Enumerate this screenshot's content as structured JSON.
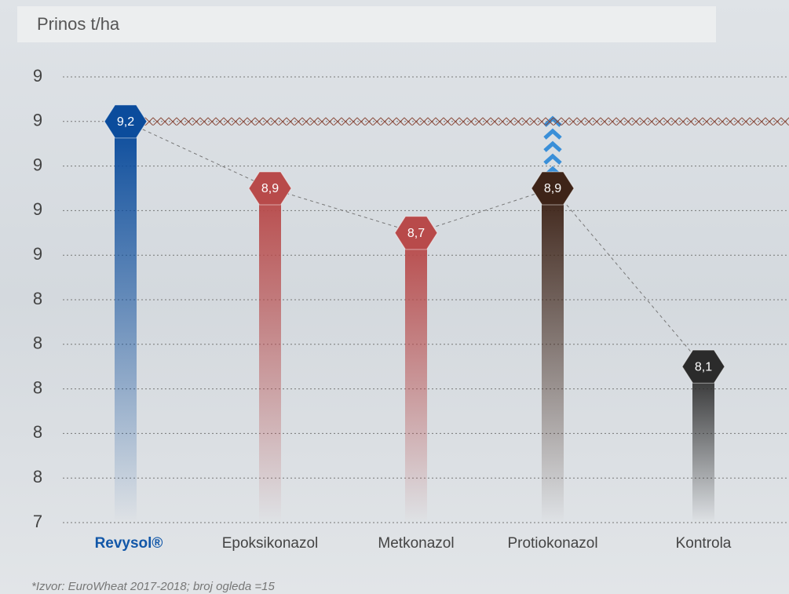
{
  "chart_data": {
    "type": "bar",
    "title": "Prinos t/ha",
    "categories": [
      "Revysol®",
      "Epoksikonazol",
      "Metkonazol",
      "Protiokonazol",
      "Kontrola"
    ],
    "values": [
      9.2,
      8.9,
      8.7,
      8.9,
      8.1
    ],
    "value_labels": [
      "9,2",
      "8,9",
      "8,7",
      "8,9",
      "8,1"
    ],
    "colors": [
      "#0b4c9c",
      "#b84a4a",
      "#b84a4a",
      "#3e2418",
      "#2b2b2b"
    ],
    "ylim": [
      7.4,
      9.4
    ],
    "yticks": [
      {
        "value": 7.4,
        "label": "7"
      },
      {
        "value": 7.6,
        "label": "8"
      },
      {
        "value": 7.8,
        "label": "8"
      },
      {
        "value": 8.0,
        "label": "8"
      },
      {
        "value": 8.2,
        "label": "8"
      },
      {
        "value": 8.4,
        "label": "8"
      },
      {
        "value": 8.6,
        "label": "9"
      },
      {
        "value": 8.8,
        "label": "9"
      },
      {
        "value": 9.0,
        "label": "9"
      },
      {
        "value": 9.2,
        "label": "9"
      },
      {
        "value": 9.4,
        "label": "9"
      }
    ],
    "grid": true,
    "footnote": "*Izvor: EuroWheat 2017-2018; broj ogleda =15"
  }
}
